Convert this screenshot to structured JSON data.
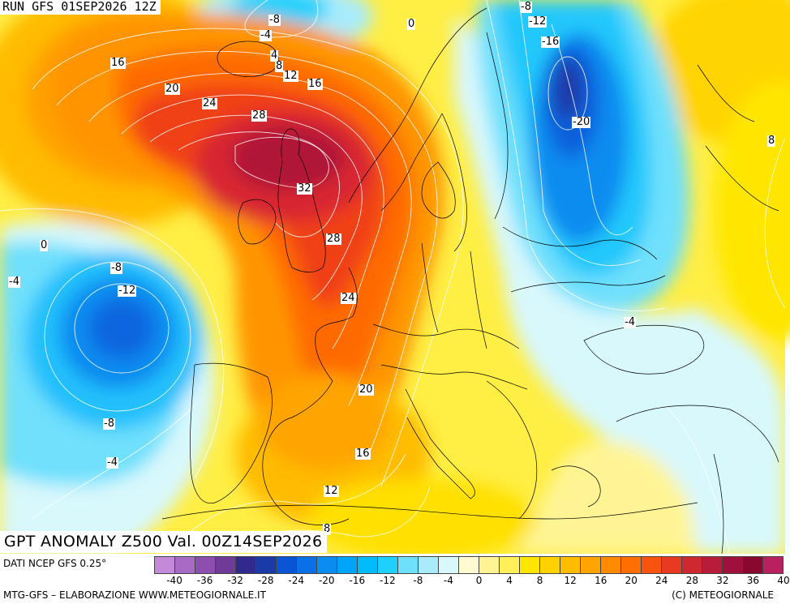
{
  "header": {
    "run": "RUN GFS 01SEP2026 12Z"
  },
  "map": {
    "title": "GPT ANOMALY Z500 Val. 00Z14SEP2026",
    "contour_labels": [
      "-8",
      "-4",
      "0",
      "-8",
      "-12",
      "-16",
      "-20",
      "16",
      "20",
      "24",
      "28",
      "4",
      "8",
      "12",
      "16",
      "8",
      "32",
      "28",
      "0",
      "-8",
      "-4",
      "-12",
      "24",
      "-4",
      "20",
      "-8",
      "-4",
      "16",
      "12",
      "8"
    ],
    "colors": {
      "strong_positive": "#a8103c",
      "positive": "#ff7a00",
      "neutral": "#ffffff",
      "negative": "#00b4ff",
      "strong_negative": "#0a55d6"
    }
  },
  "legend": {
    "colors": [
      "#c28ad8",
      "#a66bc4",
      "#8c4fae",
      "#6f3a98",
      "#302a8c",
      "#1a3aa8",
      "#0a55d6",
      "#0a70e6",
      "#0a8cf0",
      "#00a4f8",
      "#00bcfc",
      "#20d0fc",
      "#6fe0fc",
      "#a8ecfc",
      "#d8f8fc",
      "#fffad0",
      "#fff494",
      "#fff05a",
      "#ffe600",
      "#ffd200",
      "#ffbc00",
      "#ffa400",
      "#ff8a00",
      "#ff6e00",
      "#f85410",
      "#e83a20",
      "#d02830",
      "#b81c38",
      "#a0103c",
      "#880830",
      "#b82060"
    ],
    "ticks": [
      "-40",
      "-36",
      "-32",
      "-28",
      "-24",
      "-20",
      "-16",
      "-12",
      "-8",
      "-4",
      "0",
      "4",
      "8",
      "12",
      "16",
      "20",
      "24",
      "28",
      "32",
      "36",
      "40"
    ]
  },
  "footer": {
    "data_source": "DATI NCEP GFS 0.25°",
    "credits_left": "MTG-GFS – ELABORAZIONE WWW.METEOGIORNALE.IT",
    "credits_right": "(C) METEOGIORNALE"
  }
}
